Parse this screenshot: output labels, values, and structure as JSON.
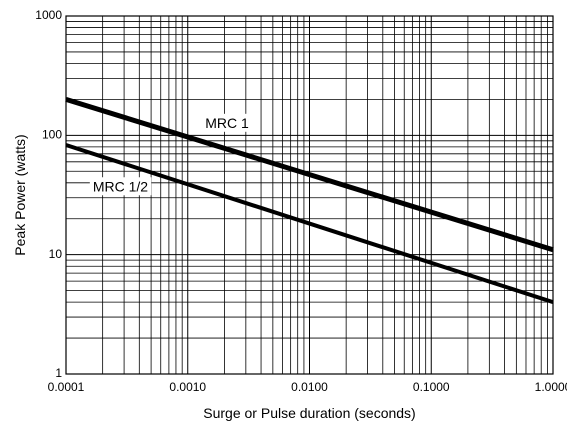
{
  "chart_data": {
    "type": "line",
    "title": "",
    "xlabel": "Surge or Pulse duration (seconds)",
    "ylabel": "Peak Power (watts)",
    "x_scale": "log",
    "y_scale": "log",
    "xlim": [
      0.0001,
      1.0
    ],
    "ylim": [
      1,
      1000
    ],
    "grid": true,
    "x_ticks": [
      {
        "value": 0.0001,
        "label": "0.0001"
      },
      {
        "value": 0.001,
        "label": "0.0010"
      },
      {
        "value": 0.01,
        "label": "0.0100"
      },
      {
        "value": 0.1,
        "label": "0.1000"
      },
      {
        "value": 1.0,
        "label": "1.0000"
      }
    ],
    "y_ticks": [
      {
        "value": 1,
        "label": "1"
      },
      {
        "value": 10,
        "label": "10"
      },
      {
        "value": 100,
        "label": "100"
      },
      {
        "value": 1000,
        "label": "1000"
      }
    ],
    "series": [
      {
        "name": "MRC 1",
        "x": [
          0.0001,
          1.0
        ],
        "y": [
          200,
          11
        ]
      },
      {
        "name": "MRC 1/2",
        "x": [
          0.0001,
          1.0
        ],
        "y": [
          83,
          4
        ]
      }
    ]
  }
}
